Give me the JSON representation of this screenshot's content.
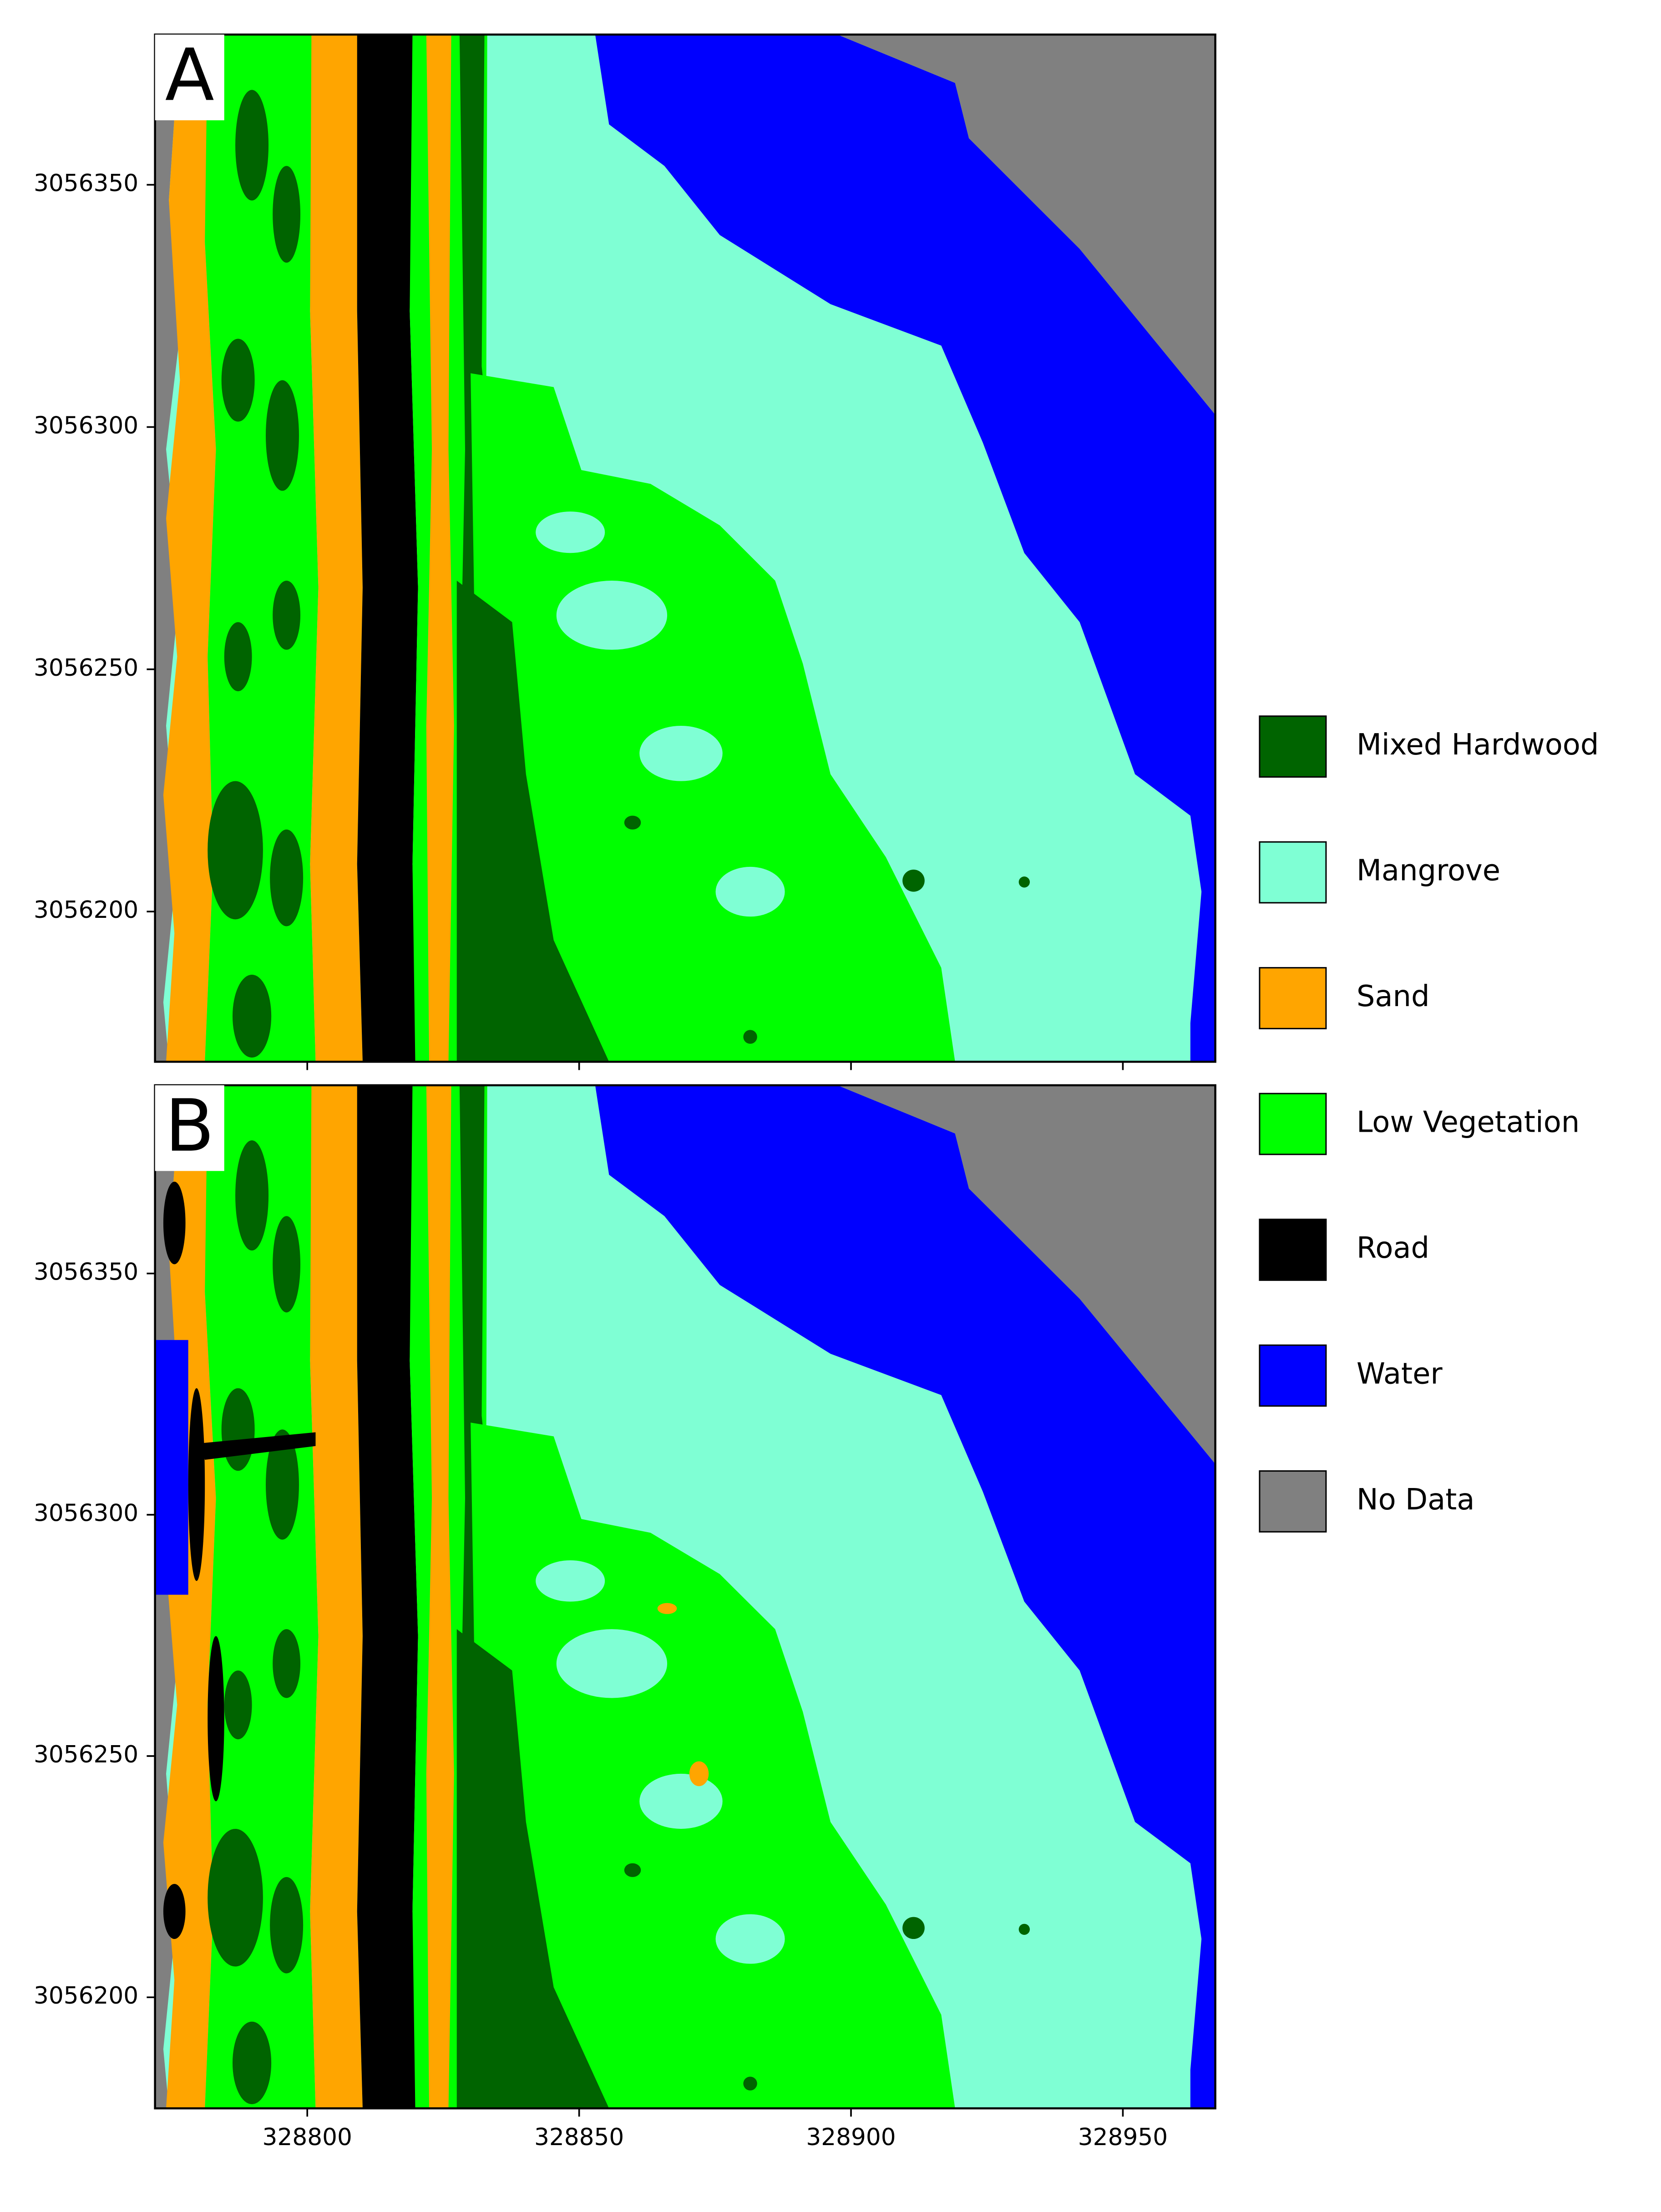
{
  "panels": [
    {
      "label": "A",
      "ylim": [
        3056381,
        3056169
      ],
      "yticks": [
        3056350,
        3056300,
        3056250,
        3056200
      ]
    },
    {
      "label": "B",
      "ylim": [
        3056389,
        3056177
      ],
      "yticks": [
        3056350,
        3056300,
        3056250,
        3056200
      ]
    }
  ],
  "xlim": [
    328772,
    328967
  ],
  "xticks": [
    328800,
    328850,
    328900,
    328950
  ],
  "legend": [
    {
      "name": "Mixed Hardwood",
      "color": "#006400"
    },
    {
      "name": "Mangrove",
      "color": "#7fffd4"
    },
    {
      "name": "Sand",
      "color": "#ffa500"
    },
    {
      "name": "Low Vegetation",
      "color": "#00ff00"
    },
    {
      "name": "Road",
      "color": "#000000"
    },
    {
      "name": "Water",
      "color": "#0000ff"
    },
    {
      "name": "No Data",
      "color": "#808080"
    }
  ]
}
